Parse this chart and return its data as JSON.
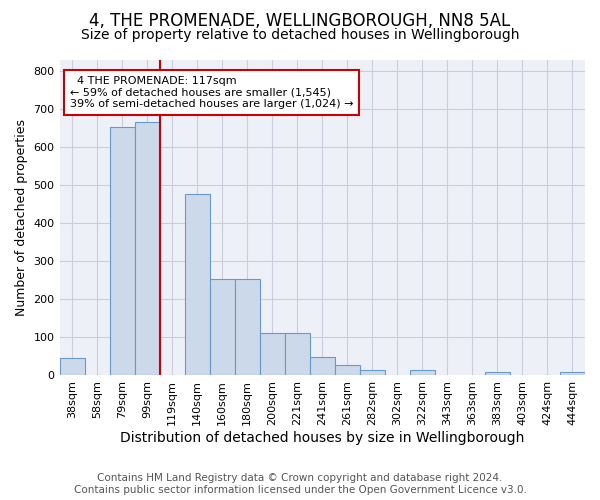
{
  "title": "4, THE PROMENADE, WELLINGBOROUGH, NN8 5AL",
  "subtitle": "Size of property relative to detached houses in Wellingborough",
  "xlabel": "Distribution of detached houses by size in Wellingborough",
  "ylabel": "Number of detached properties",
  "footer_line1": "Contains HM Land Registry data © Crown copyright and database right 2024.",
  "footer_line2": "Contains public sector information licensed under the Open Government Licence v3.0.",
  "bin_labels": [
    "38sqm",
    "58sqm",
    "79sqm",
    "99sqm",
    "119sqm",
    "140sqm",
    "160sqm",
    "180sqm",
    "200sqm",
    "221sqm",
    "241sqm",
    "261sqm",
    "282sqm",
    "302sqm",
    "322sqm",
    "343sqm",
    "363sqm",
    "383sqm",
    "403sqm",
    "424sqm",
    "444sqm"
  ],
  "bar_heights": [
    45,
    0,
    655,
    668,
    0,
    478,
    253,
    253,
    113,
    113,
    48,
    28,
    15,
    0,
    15,
    0,
    0,
    8,
    0,
    0,
    8
  ],
  "bar_color": "#ccd9ea",
  "bar_edge_color": "#6699cc",
  "vline_x_index": 4,
  "property_label": "4 THE PROMENADE: 117sqm",
  "pct_smaller": "59% of detached houses are smaller (1,545)",
  "pct_larger": "39% of semi-detached houses are larger (1,024)",
  "vline_color": "#cc0000",
  "annotation_box_color": "#ffffff",
  "annotation_box_edge": "#cc0000",
  "ylim": [
    0,
    830
  ],
  "yticks": [
    0,
    100,
    200,
    300,
    400,
    500,
    600,
    700,
    800
  ],
  "grid_color": "#ccccdd",
  "plot_bg_color": "#eef0f8",
  "fig_bg_color": "#ffffff",
  "title_fontsize": 12,
  "subtitle_fontsize": 10,
  "xlabel_fontsize": 10,
  "ylabel_fontsize": 9,
  "tick_fontsize": 8,
  "annotation_fontsize": 8,
  "footer_fontsize": 7.5
}
